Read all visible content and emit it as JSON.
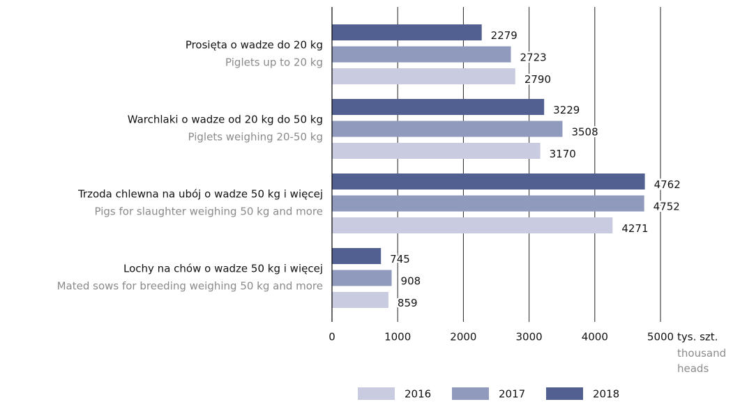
{
  "chart_data": {
    "type": "barh",
    "categories": [
      "Prosięta o wadze do 20 kg",
      "Warchlaki o wadze od 20 kg do 50 kg",
      "Trzoda chlewna na ubój o wadze 50 kg i więcej",
      "Lochy na chów o wadze 50 kg i więcej"
    ],
    "categories_en": [
      "Piglets up to 20 kg",
      "Piglets weighing 20-50 kg",
      "Pigs for slaughter weighing 50 kg and more",
      "Mated sows for breeding weighing 50 kg and more"
    ],
    "series": [
      {
        "name": "2016",
        "color": "#c9cce0",
        "values": [
          2790,
          3170,
          4271,
          859
        ]
      },
      {
        "name": "2017",
        "color": "#8f9abd",
        "values": [
          2723,
          3508,
          4752,
          908
        ]
      },
      {
        "name": "2018",
        "color": "#525f91",
        "values": [
          2279,
          3229,
          4762,
          745
        ]
      }
    ],
    "xlim": [
      0,
      5000
    ],
    "xticks": [
      0,
      1000,
      2000,
      3000,
      4000,
      5000
    ],
    "x_label": "tys. szt.",
    "x_label_en": "thousand heads",
    "grid": true
  }
}
